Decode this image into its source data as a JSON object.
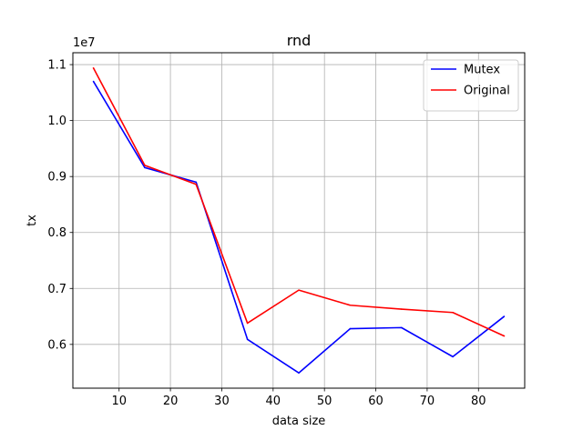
{
  "chart_data": {
    "type": "line",
    "title": "rnd",
    "xlabel": "data size",
    "ylabel": "tx",
    "offset_text": "1e7",
    "x": [
      5,
      15,
      25,
      35,
      45,
      55,
      65,
      75,
      85
    ],
    "series": [
      {
        "name": "Mutex",
        "color": "#0000ff",
        "values": [
          10700000,
          9160000,
          8900000,
          6090000,
          5490000,
          6280000,
          6300000,
          5780000,
          6500000
        ]
      },
      {
        "name": "Original",
        "color": "#ff0000",
        "values": [
          10940000,
          9200000,
          8860000,
          6380000,
          6970000,
          6700000,
          6630000,
          6570000,
          6150000
        ]
      }
    ],
    "xticks": [
      10,
      20,
      30,
      40,
      50,
      60,
      70,
      80
    ],
    "xtick_labels": [
      "10",
      "20",
      "30",
      "40",
      "50",
      "60",
      "70",
      "80"
    ],
    "yticks": [
      6000000,
      7000000,
      8000000,
      9000000,
      10000000,
      11000000
    ],
    "ytick_labels": [
      "0.6",
      "0.7",
      "0.8",
      "0.9",
      "1.0",
      "1.1"
    ],
    "xlim": [
      1,
      89
    ],
    "ylim": [
      5217500,
      11212500
    ],
    "grid": true,
    "legend_position": "upper right"
  }
}
